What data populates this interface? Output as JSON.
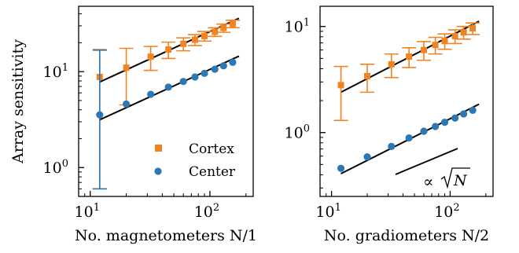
{
  "colors": {
    "cortex": "#f28322",
    "center": "#2b78b6",
    "fit": "#000000",
    "axis": "#000000"
  },
  "legend": {
    "cortex_label": "Cortex",
    "center_label": "Center"
  },
  "chart_data": [
    {
      "type": "scatter",
      "xscale": "log",
      "yscale": "log",
      "xlim": [
        8,
        230
      ],
      "ylim": [
        0.5,
        48
      ],
      "xlabel": "No. magnetometers N/1",
      "ylabel": "Array sensitivity",
      "x_ticks": [
        {
          "value": 10,
          "label": "10",
          "exp": "1"
        },
        {
          "value": 100,
          "label": "10",
          "exp": "2"
        }
      ],
      "y_ticks": [
        {
          "value": 1,
          "label": "10",
          "exp": "0"
        },
        {
          "value": 10,
          "label": "10",
          "exp": "1"
        }
      ],
      "legend_position": "lower-right",
      "series": [
        {
          "name": "Cortex",
          "marker": "square",
          "color_key": "cortex",
          "x": [
            12,
            20,
            32,
            45,
            60,
            75,
            90,
            110,
            130,
            155
          ],
          "y": [
            8.8,
            11,
            14.3,
            17,
            19.5,
            21.5,
            23.5,
            26,
            28.5,
            31.5
          ],
          "yerr_low": [
            8.2,
            6.5,
            4.0,
            3.3,
            3.0,
            2.8,
            2.7,
            2.7,
            2.8,
            2.8
          ],
          "yerr_high": [
            8.2,
            6.5,
            4.0,
            3.3,
            3.0,
            2.8,
            2.7,
            2.7,
            2.8,
            2.8
          ],
          "fit": {
            "x": [
              12,
              175
            ],
            "y": [
              7.8,
              36
            ]
          }
        },
        {
          "name": "Center",
          "marker": "circle",
          "color_key": "center",
          "x": [
            12,
            20,
            32,
            45,
            60,
            75,
            90,
            110,
            130,
            155
          ],
          "y": [
            3.55,
            4.6,
            5.8,
            6.9,
            7.9,
            8.8,
            9.6,
            10.6,
            11.5,
            12.5
          ],
          "yerr_low": [
            2.95,
            0,
            0,
            0,
            0,
            0,
            0,
            0,
            0,
            0
          ],
          "yerr_high": [
            13.2,
            0,
            0,
            0,
            0,
            0,
            0,
            0,
            0,
            0
          ],
          "fit": {
            "x": [
              12,
              175
            ],
            "y": [
              3.15,
              14.5
            ]
          }
        }
      ]
    },
    {
      "type": "scatter",
      "xscale": "log",
      "yscale": "log",
      "xlim": [
        8,
        230
      ],
      "ylim": [
        0.25,
        15.5
      ],
      "xlabel": "No. gradiometers N/2",
      "ylabel": "",
      "x_ticks": [
        {
          "value": 10,
          "label": "10",
          "exp": "1"
        },
        {
          "value": 100,
          "label": "10",
          "exp": "2"
        }
      ],
      "y_ticks": [
        {
          "value": 1,
          "label": "10",
          "exp": "0"
        },
        {
          "value": 10,
          "label": "10",
          "exp": "1"
        }
      ],
      "annotation": {
        "text_prefix": "∝",
        "text_radicand": "N"
      },
      "series": [
        {
          "name": "Cortex",
          "marker": "square",
          "color_key": "cortex",
          "x": [
            12,
            20,
            32,
            45,
            60,
            75,
            90,
            110,
            130,
            155
          ],
          "y": [
            2.8,
            3.4,
            4.4,
            5.2,
            6.0,
            6.7,
            7.3,
            8.1,
            8.8,
            9.6
          ],
          "yerr_low": [
            1.5,
            1.0,
            1.1,
            1.1,
            1.2,
            1.2,
            1.2,
            1.2,
            1.2,
            1.2
          ],
          "yerr_high": [
            1.4,
            1.0,
            1.1,
            1.1,
            1.2,
            1.2,
            1.2,
            1.2,
            1.2,
            1.2
          ],
          "fit": {
            "x": [
              12,
              175
            ],
            "y": [
              2.4,
              11.2
            ]
          }
        },
        {
          "name": "Center",
          "marker": "circle",
          "color_key": "center",
          "x": [
            12,
            20,
            32,
            45,
            60,
            75,
            90,
            110,
            130,
            155
          ],
          "y": [
            0.46,
            0.59,
            0.74,
            0.89,
            1.03,
            1.14,
            1.25,
            1.37,
            1.5,
            1.62
          ],
          "yerr_low": [
            0,
            0,
            0,
            0,
            0,
            0,
            0,
            0,
            0,
            0
          ],
          "yerr_high": [
            0,
            0,
            0,
            0,
            0,
            0,
            0,
            0,
            0,
            0
          ],
          "fit": {
            "x": [
              12,
              175
            ],
            "y": [
              0.41,
              1.85
            ]
          }
        }
      ]
    }
  ]
}
